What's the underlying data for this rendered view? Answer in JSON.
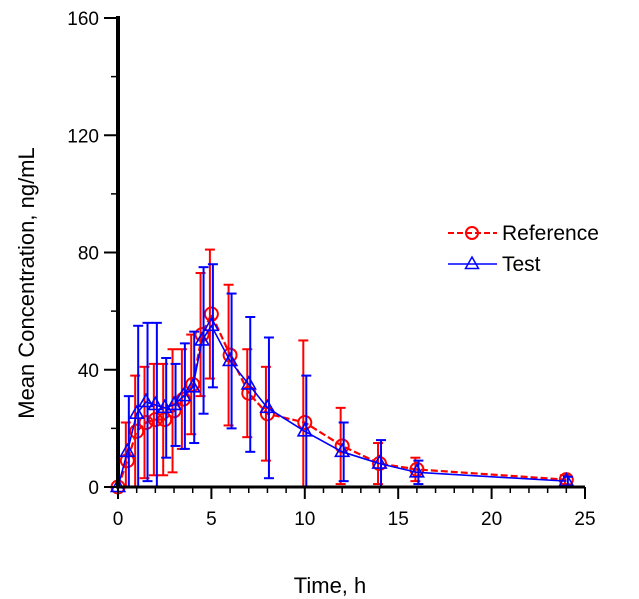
{
  "chart_data": {
    "type": "line",
    "xlabel": "Time, h",
    "ylabel": "Mean  Concentration, ng/mL",
    "xlim": [
      0,
      25
    ],
    "ylim": [
      0,
      160
    ],
    "x_ticks": [
      "0",
      "5",
      "10",
      "15",
      "20",
      "25"
    ],
    "y_ticks": [
      "0",
      "40",
      "80",
      "120",
      "160"
    ],
    "x_minor_step": 1,
    "y_minor_step": 20,
    "grid": false,
    "legend_position": "right",
    "series": [
      {
        "name": "Reference",
        "color": "#ff0000",
        "marker": "circle",
        "line_style": "dashed",
        "x": [
          0,
          0.5,
          1,
          1.5,
          2,
          2.5,
          3,
          3.5,
          4,
          4.5,
          5,
          6,
          7,
          8,
          10,
          12,
          14,
          16,
          24
        ],
        "y": [
          0,
          9,
          19,
          22,
          23,
          23,
          26,
          30,
          35,
          52,
          59,
          45,
          32,
          25,
          22,
          14,
          8,
          6,
          2.5
        ],
        "err": [
          0,
          13,
          19,
          19,
          19,
          19,
          21,
          17,
          17,
          21,
          22,
          24,
          15,
          16,
          28,
          13,
          7,
          4,
          1.5
        ]
      },
      {
        "name": "Test",
        "color": "#0000ff",
        "marker": "triangle",
        "line_style": "solid",
        "x": [
          0,
          0.5,
          1,
          1.5,
          2,
          2.5,
          3,
          3.5,
          4,
          4.5,
          5,
          6,
          7,
          8,
          10,
          12,
          14,
          16,
          24
        ],
        "y": [
          0,
          12,
          25,
          29,
          28,
          27,
          28,
          31,
          34,
          50,
          55,
          43,
          35,
          27,
          19,
          12,
          8,
          5,
          2
        ],
        "err": [
          0,
          19,
          30,
          27,
          28,
          17,
          14,
          18,
          19,
          25,
          21,
          23,
          23,
          24,
          19,
          10,
          8,
          4,
          1.5
        ]
      }
    ]
  }
}
